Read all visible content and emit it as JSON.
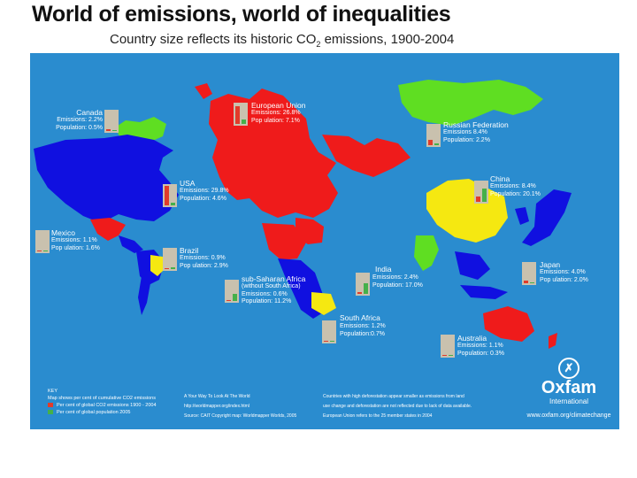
{
  "title": "World of emissions, world of inequalities",
  "subtitle_prefix": "Country size reflects its historic CO",
  "subtitle_sub": "2",
  "subtitle_suffix": " emissions, 1900-2004",
  "colors": {
    "ocean": "#2a8ccf",
    "europe": "#ef1b1b",
    "russia": "#5fde22",
    "americas": "#1010e0",
    "yellow": "#f5e811",
    "emission_bar": "#e23b2a",
    "population_bar": "#45b04a"
  },
  "regions": [
    {
      "id": "canada",
      "name": "Canada",
      "emissions": "Emissions: 2.2%",
      "population": "Population: 0.5%",
      "emissions_pct": 2.2,
      "population_pct": 0.5
    },
    {
      "id": "eu",
      "name": "European Union",
      "emissions": "Emissions: 26.8%",
      "population": "Pop ulation: 7.1%",
      "emissions_pct": 26.8,
      "population_pct": 7.1
    },
    {
      "id": "russia",
      "name": "Russian Federation",
      "emissions": "Emissions 8.4%",
      "population": "Population: 2.2%",
      "emissions_pct": 8.4,
      "population_pct": 2.2
    },
    {
      "id": "usa",
      "name": "USA",
      "emissions": "Emissions: 29.8%",
      "population": "Population: 4.6%",
      "emissions_pct": 29.8,
      "population_pct": 4.6
    },
    {
      "id": "china",
      "name": "China",
      "emissions": "Emissions: 8.4%",
      "population": "Population: 20.1%",
      "emissions_pct": 8.4,
      "population_pct": 20.1
    },
    {
      "id": "mexico",
      "name": "Mexico",
      "emissions": "Emissions: 1.1%",
      "population": "Pop ulation: 1.6%",
      "emissions_pct": 1.1,
      "population_pct": 1.6
    },
    {
      "id": "brazil",
      "name": "Brazil",
      "emissions": "Emissions: 0.9%",
      "population": "Pop ulation: 2.9%",
      "emissions_pct": 0.9,
      "population_pct": 2.9
    },
    {
      "id": "india",
      "name": "India",
      "emissions": "Emissions: 2.4%",
      "population": "Population: 17.0%",
      "emissions_pct": 2.4,
      "population_pct": 17.0
    },
    {
      "id": "japan",
      "name": "Japan",
      "emissions": "Emissions: 4.0%",
      "population": "Pop ulation: 2.0%",
      "emissions_pct": 4.0,
      "population_pct": 2.0
    },
    {
      "id": "ssa",
      "name": "sub-Saharan Africa",
      "note": "(without South Africa)",
      "emissions": "Emissions: 0.6%",
      "population": "Population: 11.2%",
      "emissions_pct": 0.6,
      "population_pct": 11.2
    },
    {
      "id": "southafrica",
      "name": "South Africa",
      "emissions": "Emissions: 1.2%",
      "population": "Population:0.7%",
      "emissions_pct": 1.2,
      "population_pct": 0.7
    },
    {
      "id": "australia",
      "name": "Australia",
      "emissions": "Emissions: 1.1%",
      "population": "Population: 0.3%",
      "emissions_pct": 1.1,
      "population_pct": 0.3
    }
  ],
  "key": {
    "title": "KEY",
    "description": "Map shows per cent of cumulative CO2 emissions",
    "emissions_label": "Per cent of global CO2 emissions 1900 - 2004",
    "population_label": "Per cent of global population 2005"
  },
  "source": {
    "line1": "A Your Way To Look At The World",
    "line2": "http://worldmapper.org/index.html",
    "line3": "Source: CAIT Copyright map: Worldmapper Worlds, 2005"
  },
  "note": {
    "line1": "Countries with high deforestation appear smaller as emissions from land",
    "line2": "use change and deforestation are not reflected due to lack of data available.",
    "line3": "European Union refers to the 25 member states in 2004"
  },
  "oxfam": {
    "logo": "✗",
    "name": "Oxfam",
    "sub": "International",
    "url": "www.oxfam.org/climatechange"
  }
}
